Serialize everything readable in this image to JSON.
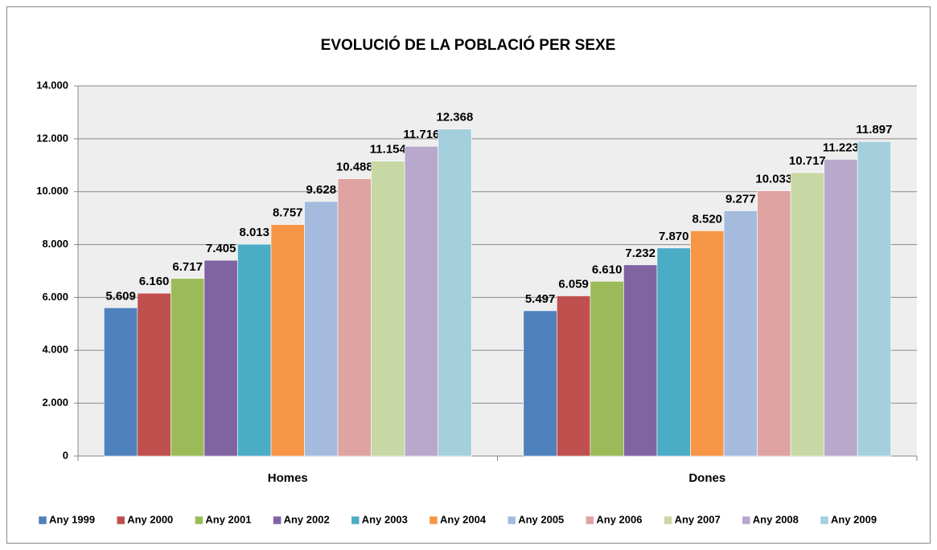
{
  "chart_data": {
    "type": "bar",
    "title": "EVOLUCIÓ DE LA POBLACIÓ PER SEXE",
    "categories": [
      "Homes",
      "Dones"
    ],
    "series": [
      {
        "name": "Any 1999",
        "color": "#4f81bd",
        "values": [
          5609,
          5497
        ],
        "value_labels": [
          "5.609",
          "5.497"
        ]
      },
      {
        "name": "Any 2000",
        "color": "#c0504d",
        "values": [
          6160,
          6059
        ],
        "value_labels": [
          "6.160",
          "6.059"
        ]
      },
      {
        "name": "Any 2001",
        "color": "#9bbb59",
        "values": [
          6717,
          6610
        ],
        "value_labels": [
          "6.717",
          "6.610"
        ]
      },
      {
        "name": "Any 2002",
        "color": "#8064a2",
        "values": [
          7405,
          7232
        ],
        "value_labels": [
          "7.405",
          "7.232"
        ]
      },
      {
        "name": "Any 2003",
        "color": "#4bacc6",
        "values": [
          8013,
          7870
        ],
        "value_labels": [
          "8.013",
          "7.870"
        ]
      },
      {
        "name": "Any 2004",
        "color": "#f79646",
        "values": [
          8757,
          8520
        ],
        "value_labels": [
          "8.757",
          "8.520"
        ]
      },
      {
        "name": "Any 2005",
        "color": "#a5bbde",
        "values": [
          9628,
          9277
        ],
        "value_labels": [
          "9.628",
          "9.277"
        ]
      },
      {
        "name": "Any 2006",
        "color": "#dfa3a2",
        "values": [
          10488,
          10033
        ],
        "value_labels": [
          "10.488",
          "10.033"
        ]
      },
      {
        "name": "Any 2007",
        "color": "#c8d8a4",
        "values": [
          11154,
          10717
        ],
        "value_labels": [
          "11.154",
          "10.717"
        ]
      },
      {
        "name": "Any 2008",
        "color": "#b8a8cb",
        "values": [
          11716,
          11223
        ],
        "value_labels": [
          "11.716",
          "11.223"
        ]
      },
      {
        "name": "Any 2009",
        "color": "#a4cfdd",
        "values": [
          12368,
          11897
        ],
        "value_labels": [
          "12.368",
          "11.897"
        ]
      }
    ],
    "ylim": [
      0,
      14000
    ],
    "yticks": [
      0,
      {
        "value": 2000,
        "label": "2.000"
      },
      {
        "value": 4000,
        "label": "4.000"
      },
      {
        "value": 6000,
        "label": "6.000"
      },
      {
        "value": 8000,
        "label": "8.000"
      },
      {
        "value": 10000,
        "label": "10.000"
      },
      {
        "value": 12000,
        "label": "12.000"
      },
      {
        "value": 14000,
        "label": "14.000"
      }
    ],
    "grid": true,
    "legend": "bottom"
  }
}
